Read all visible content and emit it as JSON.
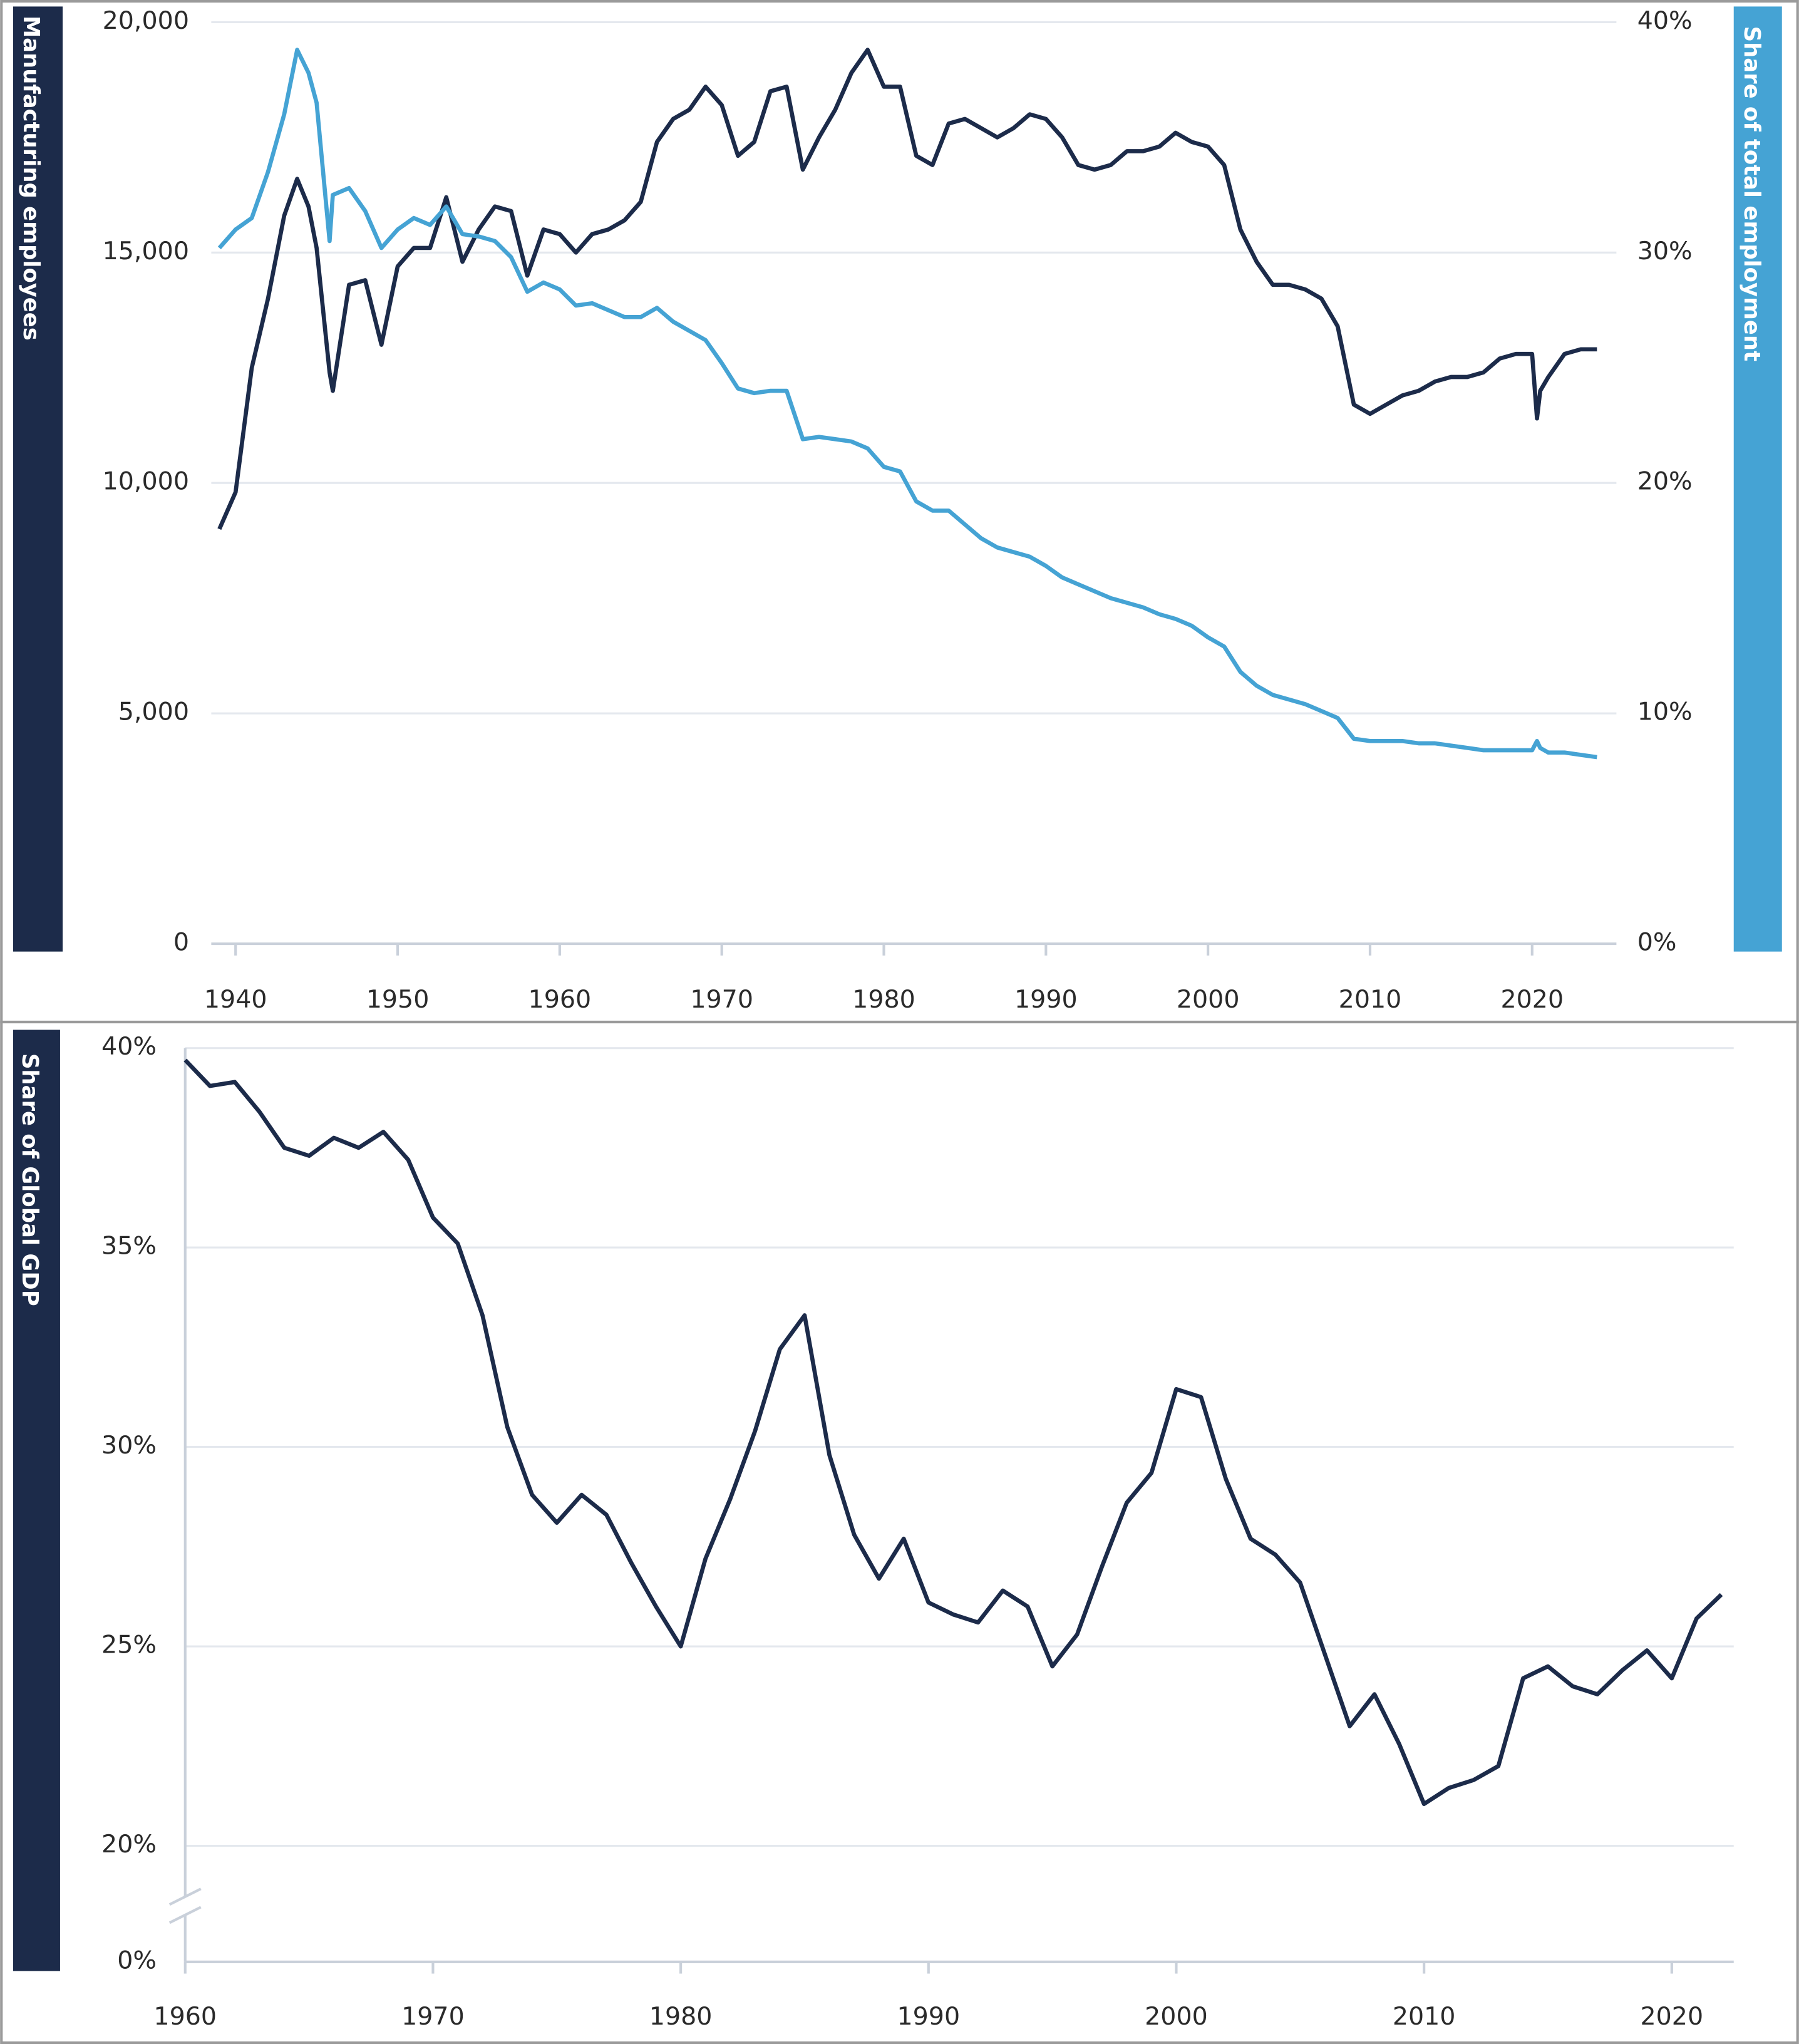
{
  "chart_data": [
    {
      "type": "line",
      "y_label": "Manufacturing employees",
      "y2_label": "Share of total employment",
      "x": [
        1939,
        1940,
        1941,
        1942,
        1943,
        1943.8,
        1944.5,
        1945,
        1945.8,
        1946,
        1947,
        1948,
        1949,
        1950,
        1951,
        1952,
        1953,
        1954,
        1955,
        1956,
        1957,
        1958,
        1959,
        1960,
        1961,
        1962,
        1963,
        1964,
        1965,
        1966,
        1967,
        1968,
        1969,
        1970,
        1971,
        1972,
        1973,
        1974,
        1975,
        1976,
        1977,
        1978,
        1979,
        1980,
        1981,
        1982,
        1983,
        1984,
        1985,
        1986,
        1987,
        1988,
        1989,
        1990,
        1991,
        1992,
        1993,
        1994,
        1995,
        1996,
        1997,
        1998,
        1999,
        2000,
        2001,
        2002,
        2003,
        2004,
        2005,
        2006,
        2007,
        2008,
        2009,
        2010,
        2011,
        2012,
        2013,
        2014,
        2015,
        2016,
        2017,
        2018,
        2019,
        2020,
        2020.3,
        2020.5,
        2021,
        2022,
        2023,
        2024
      ],
      "series": [
        {
          "color": "#1c2b4a",
          "axis": "y",
          "values": [
            9000,
            9800,
            12500,
            14000,
            15800,
            16600,
            16000,
            15100,
            12400,
            12000,
            14300,
            14400,
            13000,
            14700,
            15100,
            15100,
            16200,
            14800,
            15500,
            16000,
            15900,
            14500,
            15500,
            15400,
            15000,
            15400,
            15500,
            15700,
            16100,
            17400,
            17900,
            18100,
            18600,
            18200,
            17100,
            17400,
            18500,
            18600,
            16800,
            17500,
            18100,
            18900,
            19400,
            18600,
            18600,
            17100,
            16900,
            17800,
            17900,
            17700,
            17500,
            17700,
            18000,
            17900,
            17500,
            16900,
            16800,
            16900,
            17200,
            17200,
            17300,
            17600,
            17400,
            17300,
            16900,
            15500,
            14800,
            14300,
            14300,
            14200,
            14000,
            13400,
            11700,
            11500,
            11700,
            11900,
            12000,
            12200,
            12300,
            12300,
            12400,
            12700,
            12800,
            12800,
            11400,
            12000,
            12300,
            12800,
            12900,
            12900
          ]
        },
        {
          "color": "#45a3d4",
          "axis": "y2",
          "values": [
            30.2,
            31.0,
            31.5,
            33.5,
            36.0,
            38.8,
            37.8,
            36.5,
            30.5,
            32.5,
            32.8,
            31.8,
            30.2,
            31.0,
            31.5,
            31.2,
            32.0,
            30.8,
            30.7,
            30.5,
            29.8,
            28.3,
            28.7,
            28.4,
            27.7,
            27.8,
            27.5,
            27.2,
            27.2,
            27.6,
            27.0,
            26.6,
            26.2,
            25.2,
            24.1,
            23.9,
            24.0,
            24.0,
            21.9,
            22.0,
            21.9,
            21.8,
            21.5,
            20.7,
            20.5,
            19.2,
            18.8,
            18.8,
            18.2,
            17.6,
            17.2,
            17.0,
            16.8,
            16.4,
            15.9,
            15.6,
            15.3,
            15.0,
            14.8,
            14.6,
            14.3,
            14.1,
            13.8,
            13.3,
            12.9,
            11.8,
            11.2,
            10.8,
            10.6,
            10.4,
            10.1,
            9.8,
            8.9,
            8.8,
            8.8,
            8.8,
            8.7,
            8.7,
            8.6,
            8.5,
            8.4,
            8.4,
            8.4,
            8.4,
            8.8,
            8.5,
            8.3,
            8.3,
            8.2,
            8.1
          ]
        }
      ],
      "xlim": [
        1938.5,
        2025.2
      ],
      "xticks": [
        1940,
        1950,
        1960,
        1970,
        1980,
        1990,
        2000,
        2010,
        2020
      ],
      "ylim": [
        0,
        20000
      ],
      "yticks": [
        0,
        {
          "value": 5000,
          "label": "5,000"
        },
        {
          "value": 10000,
          "label": "10,000"
        },
        {
          "value": 15000,
          "label": "15,000"
        },
        {
          "value": 20000,
          "label": "20,000"
        }
      ],
      "y2lim": [
        0,
        40
      ],
      "y2ticks": [
        {
          "value": 0,
          "label": "0%"
        },
        {
          "value": 10,
          "label": "10%"
        },
        {
          "value": 20,
          "label": "20%"
        },
        {
          "value": 30,
          "label": "30%"
        },
        {
          "value": 40,
          "label": "40%"
        }
      ],
      "grid": true
    },
    {
      "type": "line",
      "y_label": "Share of Global GDP",
      "x": [
        1960,
        1961,
        1962,
        1963,
        1964,
        1965,
        1966,
        1967,
        1968,
        1969,
        1970,
        1971,
        1972,
        1973,
        1974,
        1975,
        1976,
        1977,
        1978,
        1979,
        1980,
        1981,
        1982,
        1983,
        1984,
        1985,
        1986,
        1987,
        1988,
        1989,
        1990,
        1991,
        1992,
        1993,
        1994,
        1995,
        1996,
        1997,
        1998,
        1999,
        2000,
        2001,
        2002,
        2003,
        2004,
        2005,
        2006,
        2007,
        2008,
        2009,
        2010,
        2011,
        2012,
        2013,
        2014,
        2015,
        2016,
        2017,
        2018,
        2019,
        2020,
        2021,
        2022
      ],
      "series": [
        {
          "color": "#1c2b4a",
          "values": [
            39.7,
            39.05,
            39.15,
            38.4,
            37.5,
            37.3,
            37.75,
            37.5,
            37.9,
            37.2,
            35.75,
            35.1,
            33.3,
            30.5,
            28.8,
            28.1,
            28.8,
            28.3,
            27.1,
            26.0,
            25.0,
            27.2,
            28.7,
            30.4,
            32.45,
            33.3,
            29.8,
            27.8,
            26.7,
            27.7,
            26.1,
            25.8,
            25.6,
            26.4,
            26.0,
            24.5,
            25.3,
            27.0,
            28.6,
            29.35,
            31.45,
            31.25,
            29.2,
            27.7,
            27.3,
            26.6,
            24.8,
            23.0,
            23.8,
            22.55,
            21.05,
            21.45,
            21.65,
            22.0,
            24.2,
            24.5,
            24.0,
            23.8,
            24.4,
            24.9,
            24.2,
            25.7,
            26.3
          ]
        }
      ],
      "xlim": [
        1960,
        2022.5
      ],
      "xticks": [
        1960,
        1970,
        1980,
        1990,
        2000,
        2010,
        2020
      ],
      "ylim": [
        20,
        40
      ],
      "yticks": [
        {
          "value": 0,
          "label": "0%"
        },
        {
          "value": 20,
          "label": "20%"
        },
        {
          "value": 25,
          "label": "25%"
        },
        {
          "value": 30,
          "label": "30%"
        },
        {
          "value": 35,
          "label": "35%"
        },
        {
          "value": 40,
          "label": "40%"
        }
      ],
      "axis_break": true,
      "grid": true
    }
  ]
}
